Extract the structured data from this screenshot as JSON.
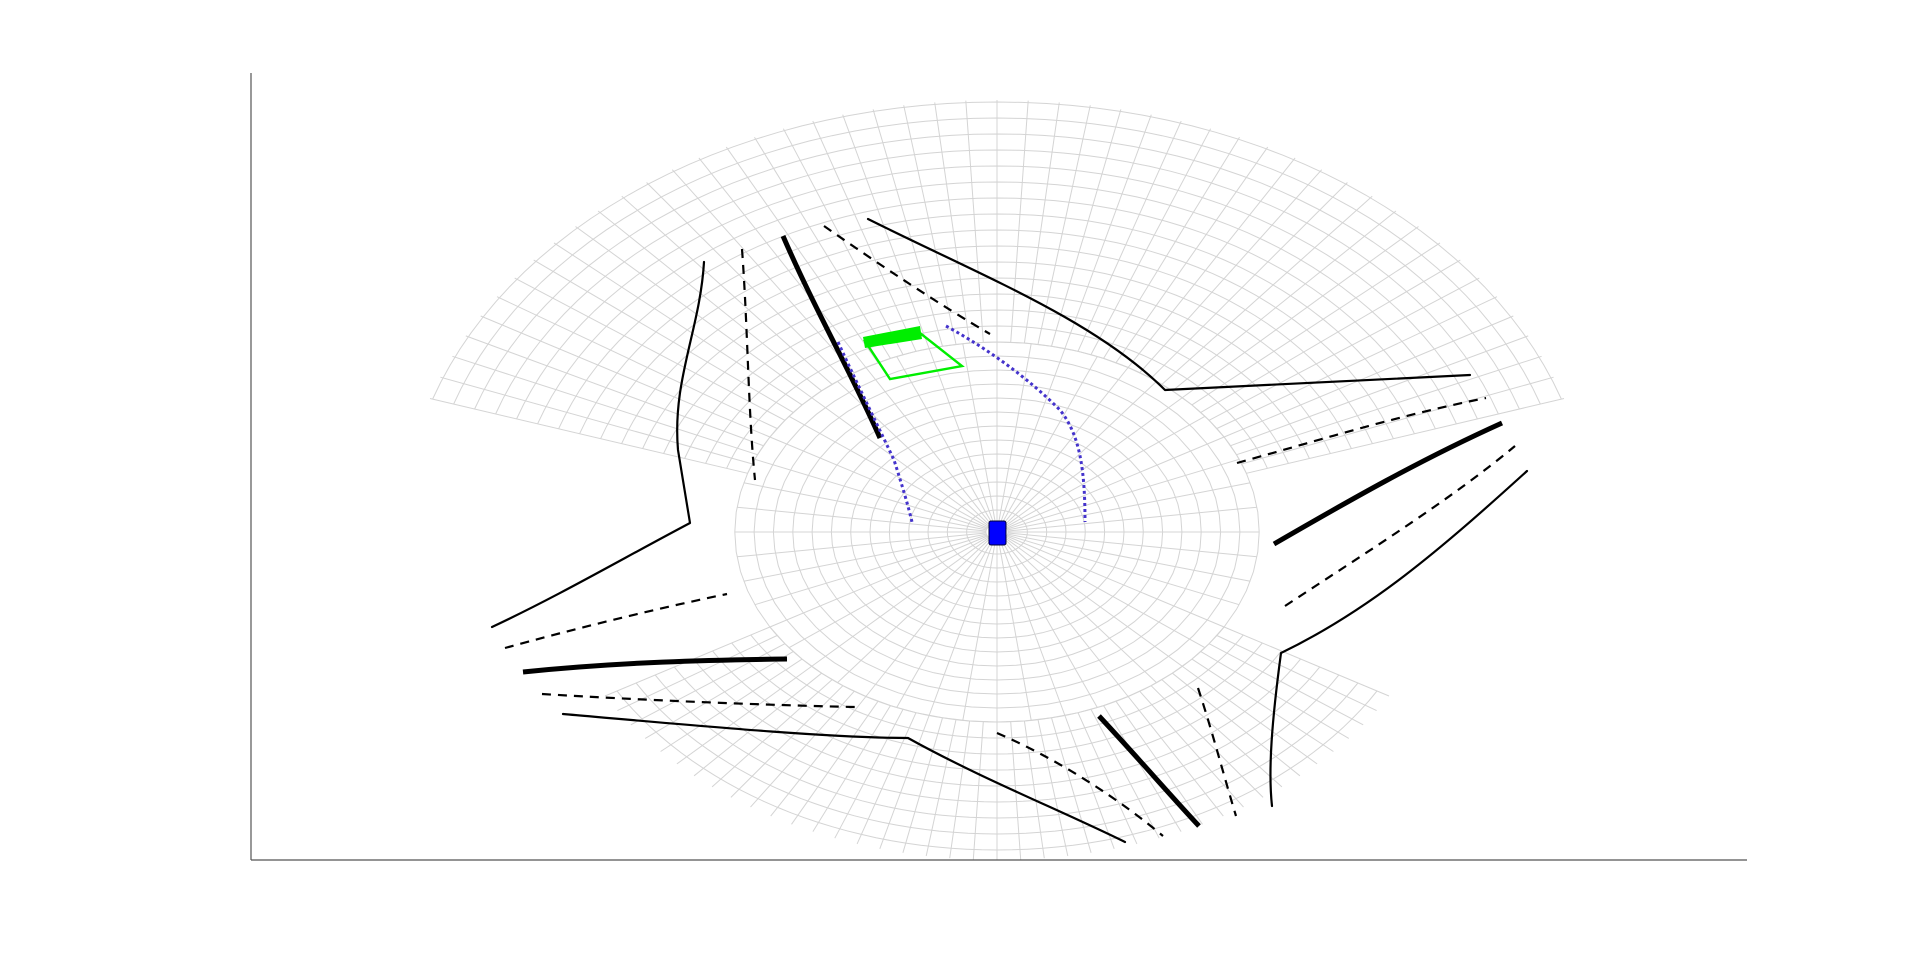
{
  "colors": {
    "background": "#ffffff",
    "axis": "#555555",
    "grid": "#d4d4d4",
    "road_line": "#000000",
    "planned_path": "#4433cc",
    "ego_vehicle": "#0000ff",
    "detected_object": "#00ee00"
  },
  "icons": {
    "ego": "ego-vehicle-icon",
    "object": "detected-vehicle-icon"
  }
}
